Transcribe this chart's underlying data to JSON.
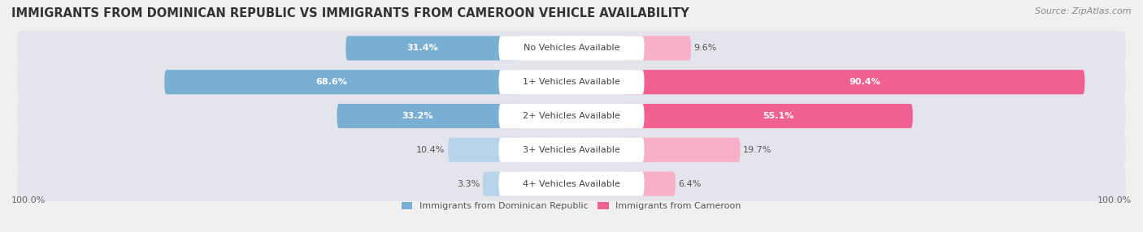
{
  "title": "IMMIGRANTS FROM DOMINICAN REPUBLIC VS IMMIGRANTS FROM CAMEROON VEHICLE AVAILABILITY",
  "source": "Source: ZipAtlas.com",
  "categories": [
    "No Vehicles Available",
    "1+ Vehicles Available",
    "2+ Vehicles Available",
    "3+ Vehicles Available",
    "4+ Vehicles Available"
  ],
  "left_values": [
    31.4,
    68.6,
    33.2,
    10.4,
    3.3
  ],
  "right_values": [
    9.6,
    90.4,
    55.1,
    19.7,
    6.4
  ],
  "left_color": "#7aafd4",
  "right_color": "#f06090",
  "left_color_light": "#b8d4ea",
  "right_color_light": "#f8b0c8",
  "left_label": "Immigrants from Dominican Republic",
  "right_label": "Immigrants from Cameroon",
  "bg_color": "#f0f0f0",
  "row_bg_color": "#e8e8ee",
  "white": "#ffffff",
  "max_value": 100.0,
  "title_fontsize": 10.5,
  "source_fontsize": 8,
  "cat_fontsize": 8,
  "value_fontsize": 8,
  "legend_fontsize": 8,
  "inside_text_threshold": 20
}
